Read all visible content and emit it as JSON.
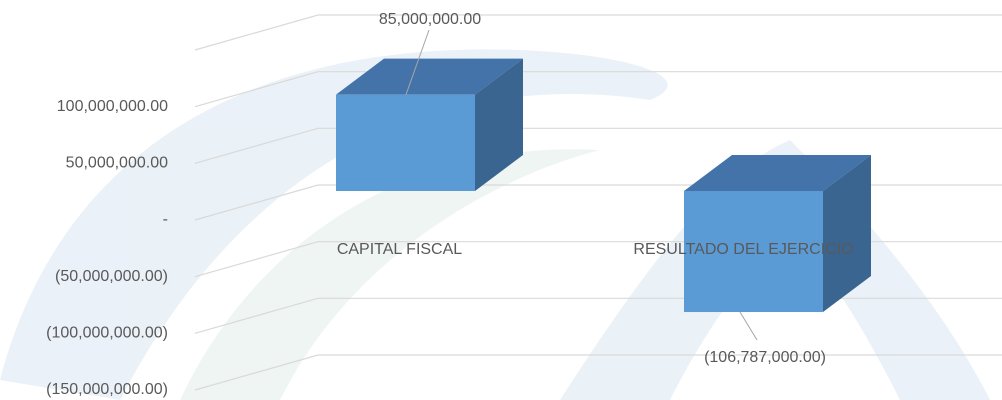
{
  "chart_data": {
    "type": "bar3d",
    "categories": [
      "CAPITAL FISCAL",
      "RESULTADO DEL EJERCICIO"
    ],
    "values": [
      85000000,
      -106787000
    ],
    "value_labels": [
      "85,000,000.00",
      "(106,787,000.00)"
    ],
    "color": "#5b9bd5",
    "ylim": [
      -150000000,
      150000000
    ],
    "yticks": [
      {
        "value": 100000000,
        "label": "100,000,000.00"
      },
      {
        "value": 50000000,
        "label": "50,000,000.00"
      },
      {
        "value": 0,
        "label": "-"
      },
      {
        "value": -50000000,
        "label": "(50,000,000.00)"
      },
      {
        "value": -100000000,
        "label": "(100,000,000.00)"
      },
      {
        "value": -150000000,
        "label": "(150,000,000.00)"
      }
    ],
    "grid": true
  }
}
